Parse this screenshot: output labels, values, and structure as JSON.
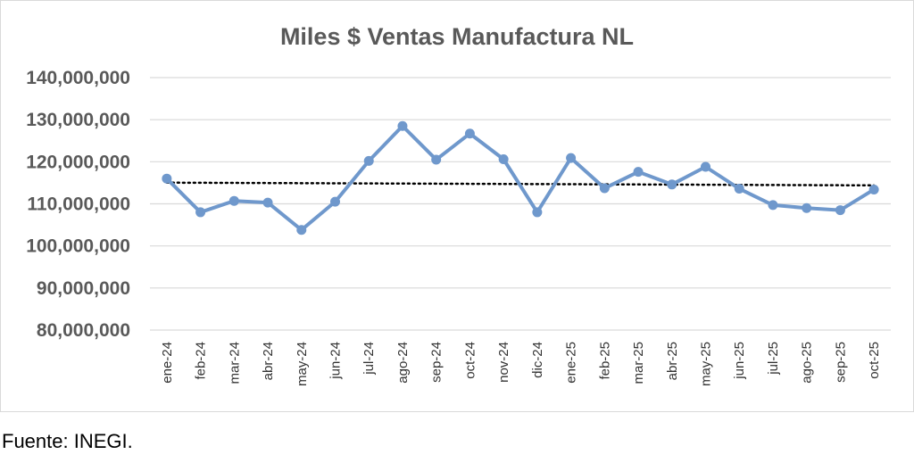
{
  "chart_data": {
    "type": "line",
    "title": "Miles $ Ventas Manufactura NL",
    "categories": [
      "ene-24",
      "feb-24",
      "mar-24",
      "abr-24",
      "may-24",
      "jun-24",
      "jul-24",
      "ago-24",
      "sep-24",
      "oct-24",
      "nov-24",
      "dic-24",
      "ene-25",
      "feb-25",
      "mar-25",
      "abr-25",
      "may-25",
      "jun-25",
      "jul-25",
      "ago-25",
      "sep-25",
      "oct-25"
    ],
    "series": [
      {
        "values": [
          116000000,
          108000000,
          110700000,
          110300000,
          103800000,
          110500000,
          120200000,
          128500000,
          120500000,
          126700000,
          120600000,
          108000000,
          120900000,
          113700000,
          117600000,
          114600000,
          118800000,
          113600000,
          109700000,
          109000000,
          108500000,
          113400000
        ]
      }
    ],
    "trendline": {
      "type": "linear",
      "style": "dotted",
      "color": "#000000"
    },
    "ylim": [
      80000000,
      140000000
    ],
    "yticks": [
      "80,000,000",
      "90,000,000",
      "100,000,000",
      "110,000,000",
      "120,000,000",
      "130,000,000",
      "140,000,000"
    ],
    "grid": true,
    "legend": "none",
    "line_color": "#6f98cc",
    "xlabel": "",
    "ylabel": ""
  },
  "footer": {
    "source": "Fuente: INEGI."
  }
}
